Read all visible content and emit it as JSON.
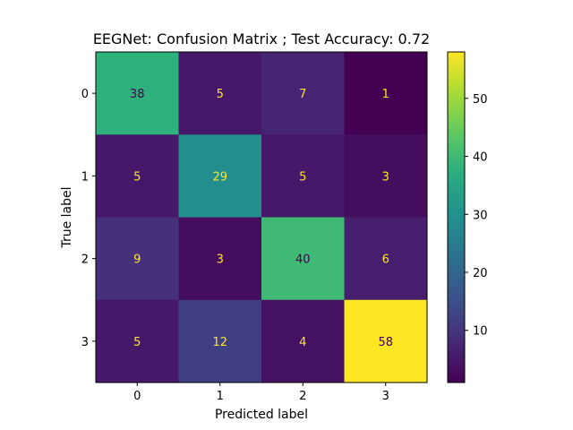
{
  "chart_data": {
    "type": "heatmap",
    "title": "EEGNet: Confusion Matrix ; Test Accuracy: 0.72",
    "xlabel": "Predicted label",
    "ylabel": "True label",
    "x_categories": [
      "0",
      "1",
      "2",
      "3"
    ],
    "y_categories": [
      "0",
      "1",
      "2",
      "3"
    ],
    "matrix": [
      [
        38,
        5,
        7,
        1
      ],
      [
        5,
        29,
        5,
        3
      ],
      [
        9,
        3,
        40,
        6
      ],
      [
        5,
        12,
        4,
        58
      ]
    ],
    "colormap": "viridis",
    "colorbar": {
      "range": [
        1,
        58
      ],
      "ticks": [
        10,
        20,
        30,
        40,
        50
      ],
      "tick_labels": [
        "10",
        "20",
        "30",
        "40",
        "50"
      ]
    },
    "grid": false,
    "colors": {
      "text_on_dark": "#fde725",
      "text_on_light": "#440154"
    }
  }
}
